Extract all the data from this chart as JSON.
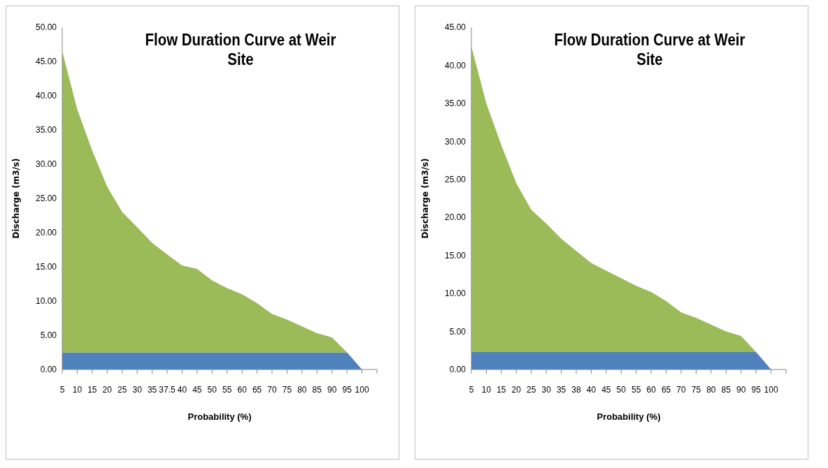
{
  "chart_data": [
    {
      "type": "area",
      "title": "Flow Duration Curve at Weir Site",
      "xlabel": "Probability (%)",
      "ylabel": "Discharge  (m3/s)",
      "stacked": true,
      "grid": false,
      "legend": false,
      "categories": [
        "5",
        "10",
        "15",
        "20",
        "25",
        "30",
        "35",
        "37.5",
        "40",
        "45",
        "50",
        "55",
        "60",
        "65",
        "70",
        "75",
        "80",
        "85",
        "90",
        "95",
        "100",
        null
      ],
      "ylim": [
        0,
        50
      ],
      "yticks": [
        {
          "value": 0,
          "label": "0.00"
        },
        {
          "value": 5,
          "label": "5.00"
        },
        {
          "value": 10,
          "label": "10.00"
        },
        {
          "value": 15,
          "label": "15.00"
        },
        {
          "value": 20,
          "label": "20.00"
        },
        {
          "value": 25,
          "label": "25.00"
        },
        {
          "value": 30,
          "label": "30.00"
        },
        {
          "value": 35,
          "label": "35.00"
        },
        {
          "value": 40,
          "label": "40.00"
        },
        {
          "value": 45,
          "label": "45.00"
        },
        {
          "value": 50,
          "label": "50.00"
        }
      ],
      "series": [
        {
          "color": "#4f81bd",
          "values": [
            2.5,
            2.5,
            2.5,
            2.5,
            2.5,
            2.5,
            2.5,
            2.5,
            2.5,
            2.5,
            2.5,
            2.5,
            2.5,
            2.5,
            2.5,
            2.5,
            2.5,
            2.5,
            2.5,
            2.5,
            0,
            null
          ]
        },
        {
          "color": "#9bbb59",
          "values": [
            44.0,
            35.5,
            29.5,
            24.2,
            20.5,
            18.3,
            16.0,
            14.3,
            12.7,
            12.2,
            10.5,
            9.4,
            8.5,
            7.2,
            5.6,
            4.8,
            3.8,
            2.8,
            2.2,
            0,
            0,
            null
          ]
        }
      ]
    },
    {
      "type": "area",
      "title": "Flow Duration Curve at Weir Site",
      "xlabel": "Probability (%)",
      "ylabel": "Discharge  (m3/s)",
      "stacked": true,
      "grid": false,
      "legend": false,
      "categories": [
        "5",
        "10",
        "15",
        "20",
        "25",
        "30",
        "35",
        "38",
        "40",
        "45",
        "50",
        "55",
        "60",
        "65",
        "70",
        "75",
        "80",
        "85",
        "90",
        "95",
        "100",
        null
      ],
      "ylim": [
        0,
        45
      ],
      "yticks": [
        {
          "value": 0,
          "label": "0.00"
        },
        {
          "value": 5,
          "label": "5.00"
        },
        {
          "value": 10,
          "label": "10.00"
        },
        {
          "value": 15,
          "label": "15.00"
        },
        {
          "value": 20,
          "label": "20.00"
        },
        {
          "value": 25,
          "label": "25.00"
        },
        {
          "value": 30,
          "label": "30.00"
        },
        {
          "value": 35,
          "label": "35.00"
        },
        {
          "value": 40,
          "label": "40.00"
        },
        {
          "value": 45,
          "label": "45.00"
        }
      ],
      "series": [
        {
          "color": "#4f81bd",
          "values": [
            2.3,
            2.3,
            2.3,
            2.3,
            2.3,
            2.3,
            2.3,
            2.3,
            2.3,
            2.3,
            2.3,
            2.3,
            2.3,
            2.3,
            2.3,
            2.3,
            2.3,
            2.3,
            2.3,
            2.3,
            0,
            null
          ]
        },
        {
          "color": "#9bbb59",
          "values": [
            40.2,
            32.7,
            27.2,
            22.2,
            18.7,
            16.9,
            14.9,
            13.3,
            11.7,
            10.7,
            9.7,
            8.7,
            7.9,
            6.7,
            5.2,
            4.5,
            3.6,
            2.7,
            2.1,
            0,
            0,
            null
          ]
        }
      ]
    }
  ]
}
